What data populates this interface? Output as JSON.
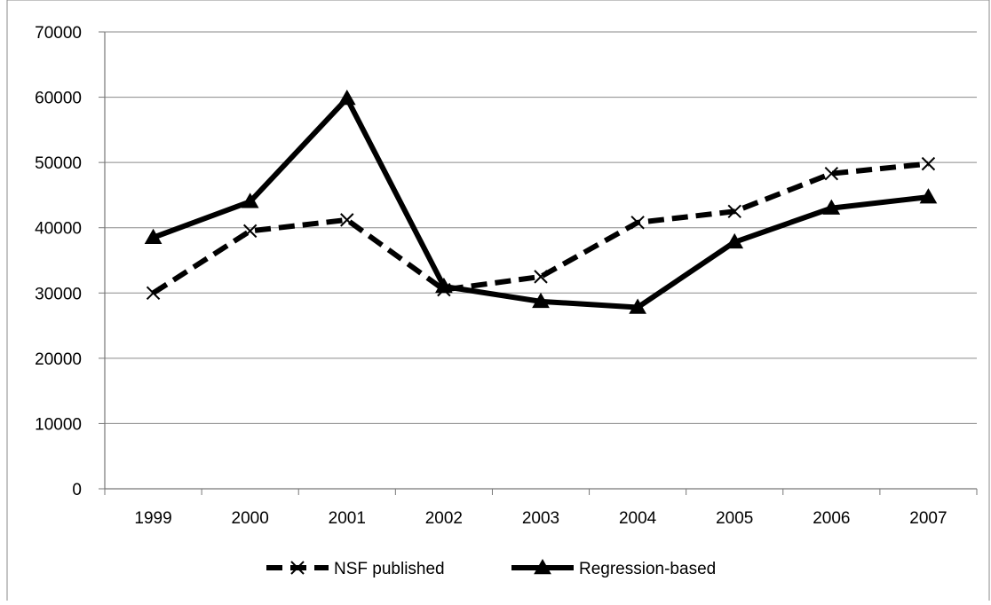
{
  "chart_data": {
    "type": "line",
    "title": "",
    "xlabel": "",
    "ylabel": "",
    "categories": [
      "1999",
      "2000",
      "2001",
      "2002",
      "2003",
      "2004",
      "2005",
      "2006",
      "2007"
    ],
    "ylim": [
      0,
      70000
    ],
    "yticks": [
      0,
      10000,
      20000,
      30000,
      40000,
      50000,
      60000,
      70000
    ],
    "grid": true,
    "legend_position": "bottom",
    "series": [
      {
        "name": "NSF published",
        "style": "dashed",
        "marker": "x",
        "values": [
          30000,
          39500,
          41200,
          30500,
          32500,
          40800,
          42500,
          48300,
          49800
        ]
      },
      {
        "name": "Regression-based",
        "style": "solid",
        "marker": "triangle",
        "values": [
          38500,
          44000,
          59800,
          31000,
          28700,
          27800,
          37800,
          43000,
          44700
        ]
      }
    ]
  }
}
